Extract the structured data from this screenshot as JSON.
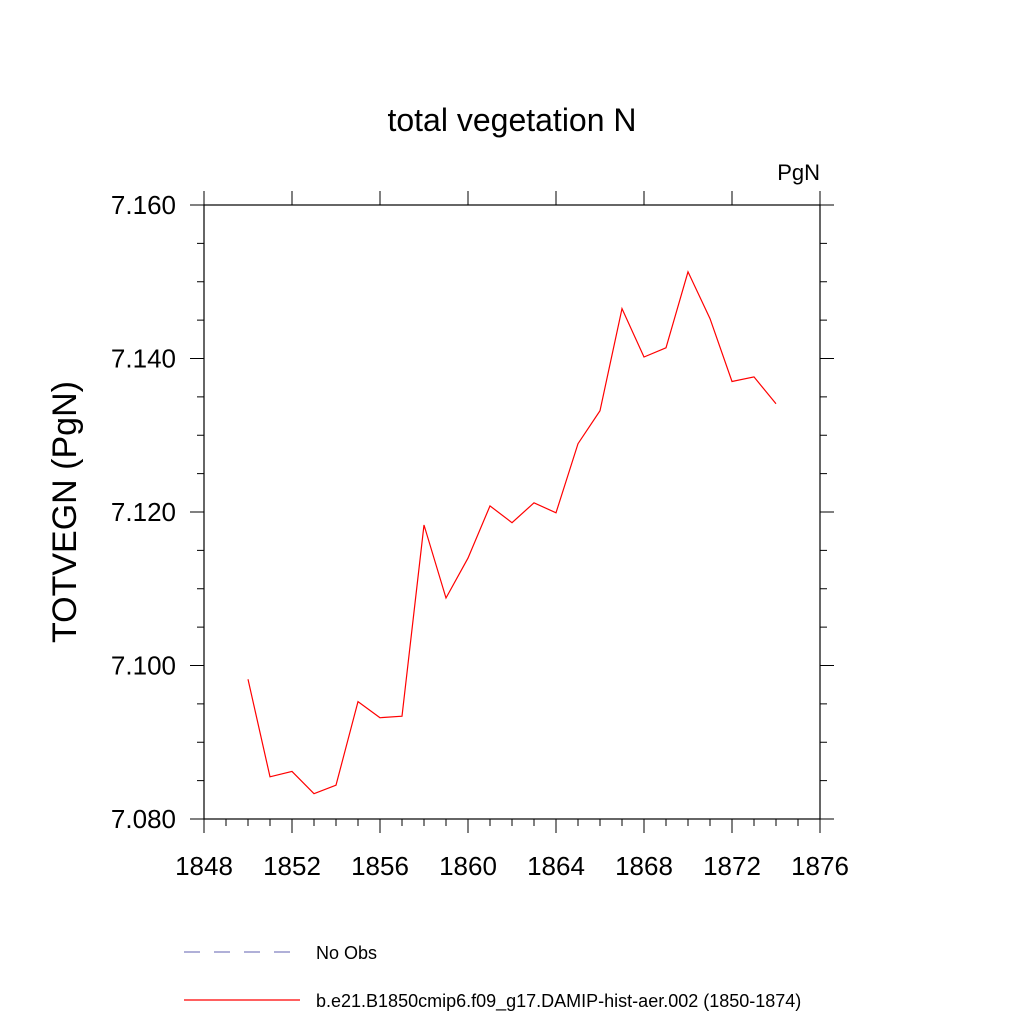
{
  "chart_data": {
    "type": "line",
    "title": "total vegetation N",
    "units_label": "PgN",
    "ylabel": "TOTVEGN  (PgN)",
    "xlabel": "",
    "xlim": [
      1848,
      1876
    ],
    "ylim": [
      7.08,
      7.16
    ],
    "x_ticks": [
      "1848",
      "1852",
      "1856",
      "1860",
      "1864",
      "1868",
      "1872",
      "1876"
    ],
    "y_ticks": [
      "7.080",
      "7.100",
      "7.120",
      "7.140",
      "7.160"
    ],
    "grid": false,
    "legend_position": "bottom",
    "series": [
      {
        "name": "b.e21.B1850cmip6.f09_g17.DAMIP-hist-aer.002 (1850-1874)",
        "color": "#ff0000",
        "dash": "solid",
        "x": [
          1850,
          1851,
          1852,
          1853,
          1854,
          1855,
          1856,
          1857,
          1858,
          1859,
          1860,
          1861,
          1862,
          1863,
          1864,
          1865,
          1866,
          1867,
          1868,
          1869,
          1870,
          1871,
          1872,
          1873,
          1874
        ],
        "values": [
          7.0982,
          7.0855,
          7.0862,
          7.0833,
          7.0844,
          7.0953,
          7.0932,
          7.0934,
          7.1183,
          7.1088,
          7.114,
          7.1208,
          7.1186,
          7.1212,
          7.1199,
          7.1289,
          7.1332,
          7.1465,
          7.1402,
          7.1414,
          7.1513,
          7.1452,
          7.137,
          7.1376,
          7.1341
        ]
      }
    ],
    "legend": [
      {
        "label": "No Obs",
        "color": "#8080c0",
        "dash": "dashed"
      },
      {
        "label": "b.e21.B1850cmip6.f09_g17.DAMIP-hist-aer.002 (1850-1874)",
        "color": "#ff0000",
        "dash": "solid"
      }
    ]
  }
}
